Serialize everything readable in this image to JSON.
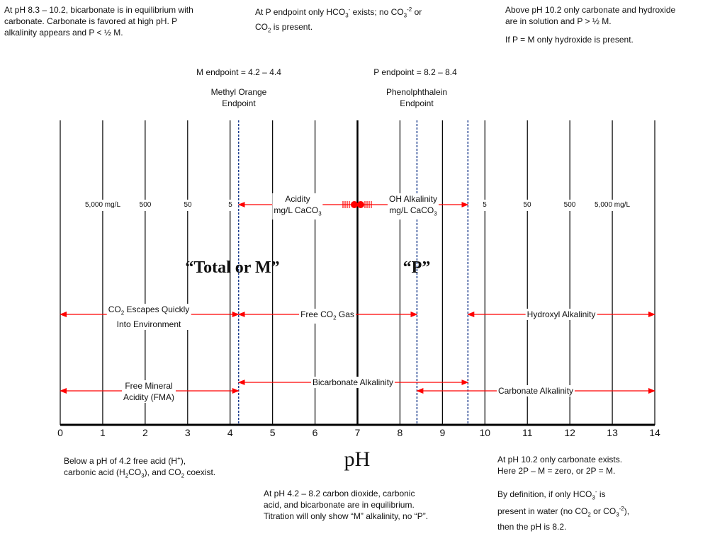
{
  "notes": {
    "top_left": [
      "At pH 8.3 – 10.2, bicarbonate is in equilibrium with",
      "carbonate. Carbonate is favored at high pH. P",
      "alkalinity appears and P < ½ M."
    ],
    "top_mid_1": "At P endpoint only HCO",
    "top_mid_1b": " exists; no CO",
    "top_mid_1c": " or",
    "top_mid_2": " is present.",
    "top_right": [
      "Above pH 10.2 only carbonate and hydroxide",
      "are in solution and P > ½ M."
    ],
    "top_right_2": "If P = M only hydroxide is present.",
    "bottom_left_1": "Below a pH of 4.2 free acid (H",
    "bottom_left_1b": "),",
    "bottom_left_2": "carbonic acid (H",
    "bottom_left_2b": "CO",
    "bottom_left_2c": "), and CO",
    "bottom_left_2d": " coexist.",
    "bottom_mid": [
      "At pH 4.2 – 8.2 carbon dioxide, carbonic",
      "acid, and bicarbonate are in equilibrium.",
      "Titration will only show “M” alkalinity, no “P”."
    ],
    "bottom_right": [
      "At pH 10.2 only carbonate exists.",
      "Here 2P – M = zero, or 2P = M."
    ],
    "bottom_right_2a": "By definition, if only HCO",
    "bottom_right_2b": " is",
    "bottom_right_3a": "present in water (no CO",
    "bottom_right_3b": " or CO",
    "bottom_right_3c": "),",
    "bottom_right_4": "then the pH is 8.2."
  },
  "endpoints": {
    "m_range": "M endpoint = 4.2 – 4.4",
    "p_range": "P endpoint = 8.2 – 8.4",
    "methyl": [
      "Methyl Orange",
      "Endpoint"
    ],
    "phenol": [
      "Phenolphthalein",
      "Endpoint"
    ]
  },
  "scale_left": [
    "5,000 mg/L",
    "500",
    "50",
    "5"
  ],
  "scale_right": [
    "5",
    "50",
    "500",
    "5,000 mg/L"
  ],
  "acidity": [
    "Acidity",
    "mg/L CaCO"
  ],
  "oh_alk": [
    "OH Alkalinity",
    "mg/L CaCO"
  ],
  "sub3": "3",
  "sub2": "2",
  "sup_minus": "-",
  "sup_m2": "-2",
  "sup_plus": "+",
  "total_m": "“Total or M”",
  "p_label": "“P”",
  "ranges": {
    "co2_escapes": [
      "CO",
      " Escapes Quickly",
      "Into Environment"
    ],
    "free_co2": [
      "Free CO",
      " Gas"
    ],
    "hydroxyl": "Hydroxyl Alkalinity",
    "bicarbonate": "Bicarbonate Alkalinity",
    "fma": [
      "Free Mineral",
      "Acidity (FMA)"
    ],
    "carbonate": "Carbonate Alkalinity"
  },
  "axis": {
    "ticks": [
      "0",
      "1",
      "2",
      "3",
      "4",
      "5",
      "6",
      "7",
      "8",
      "9",
      "10",
      "11",
      "12",
      "13",
      "14"
    ],
    "label": "pH"
  },
  "colors": {
    "arrow": "#ff0000",
    "dashed": "#1f3f8f"
  }
}
